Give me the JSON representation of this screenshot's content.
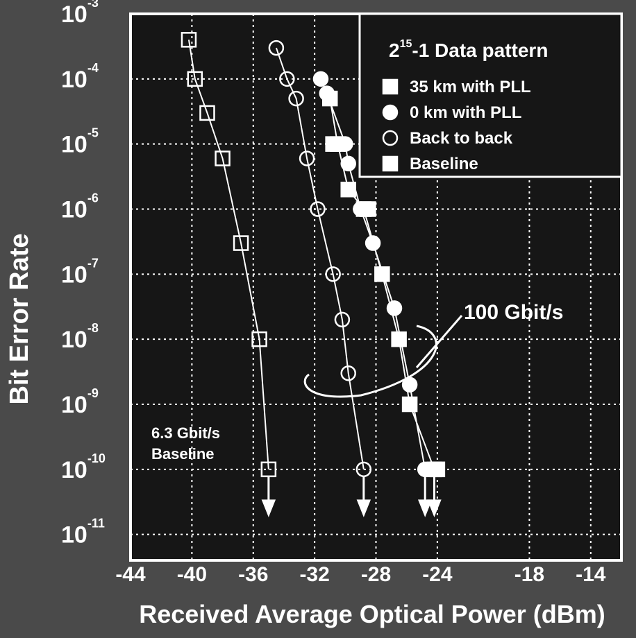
{
  "chart_data": {
    "type": "scatter",
    "y_scale": "log",
    "xlabel": "Received Average Optical Power (dBm)",
    "ylabel": "Bit Error Rate",
    "xlim": [
      -44,
      -12
    ],
    "xticks": [
      -44,
      -40,
      -36,
      -32,
      -28,
      -24,
      -18,
      -14
    ],
    "ylim": [
      0.001,
      4e-12
    ],
    "yticks": [
      {
        "value": 0.001,
        "label": "10",
        "exponent": "-3"
      },
      {
        "value": 0.0001,
        "label": "10",
        "exponent": "-4"
      },
      {
        "value": 1e-05,
        "label": "10",
        "exponent": "-5"
      },
      {
        "value": 1e-06,
        "label": "10",
        "exponent": "-6"
      },
      {
        "value": 1e-07,
        "label": "10",
        "exponent": "-7"
      },
      {
        "value": 1e-08,
        "label": "10",
        "exponent": "-8"
      },
      {
        "value": 1e-09,
        "label": "10",
        "exponent": "-9"
      },
      {
        "value": 1e-10,
        "label": "10",
        "exponent": "-10"
      },
      {
        "value": 1e-11,
        "label": "10",
        "exponent": "-11"
      }
    ],
    "grid": true,
    "legend_title": {
      "base": "2",
      "exponent": "15",
      "rest": "-1 Data pattern"
    },
    "legend": "upper right",
    "series": [
      {
        "name": "35 km with PLL",
        "marker": "square-filled",
        "color": "#ffffff",
        "fit_line": true,
        "x": [
          -31,
          -30.5,
          -29.8,
          -28.8,
          -27.6,
          -26.5,
          -25.8,
          -24.2
        ],
        "values": [
          5e-05,
          1e-05,
          2e-06,
          1e-06,
          1e-07,
          1e-08,
          1e-09,
          1e-10
        ]
      },
      {
        "name": "0 km with PLL",
        "marker": "circle-filled",
        "color": "#ffffff",
        "fit_line": true,
        "x": [
          -31.6,
          -31.2,
          -30,
          -29.8,
          -29,
          -28.2,
          -26.8,
          -25.8,
          -24.8
        ],
        "values": [
          0.0001,
          6e-05,
          1e-05,
          5e-06,
          1e-06,
          3e-07,
          3e-08,
          2e-09,
          1e-10
        ]
      },
      {
        "name": "Back to back",
        "marker": "circle-open",
        "color": "#ffffff",
        "fit_line": true,
        "x": [
          -34.5,
          -33.8,
          -33.2,
          -32.5,
          -31.8,
          -30.8,
          -30.2,
          -29.8,
          -28.8
        ],
        "values": [
          0.0003,
          0.0001,
          5e-05,
          6e-06,
          1e-06,
          1e-07,
          2e-08,
          3e-09,
          1e-10
        ]
      },
      {
        "name": "Baseline",
        "marker": "square-filled",
        "color": "#ffffff",
        "fit_line": false,
        "x": [
          -30.8,
          -28.5,
          -24
        ],
        "values": [
          1e-05,
          1e-06,
          1e-10
        ]
      },
      {
        "name": null,
        "in_legend": false,
        "marker": "square-open",
        "color": "#ffffff",
        "fit_line": true,
        "x": [
          -40.2,
          -39.8,
          -39,
          -38,
          -36.8,
          -35.6,
          -35
        ],
        "values": [
          0.0004,
          0.0001,
          3e-05,
          6e-06,
          3e-07,
          1e-08,
          1e-10
        ]
      }
    ],
    "annotations": [
      "100 Gbit/s",
      "6.3 Gbit/s",
      "Baseline"
    ]
  }
}
